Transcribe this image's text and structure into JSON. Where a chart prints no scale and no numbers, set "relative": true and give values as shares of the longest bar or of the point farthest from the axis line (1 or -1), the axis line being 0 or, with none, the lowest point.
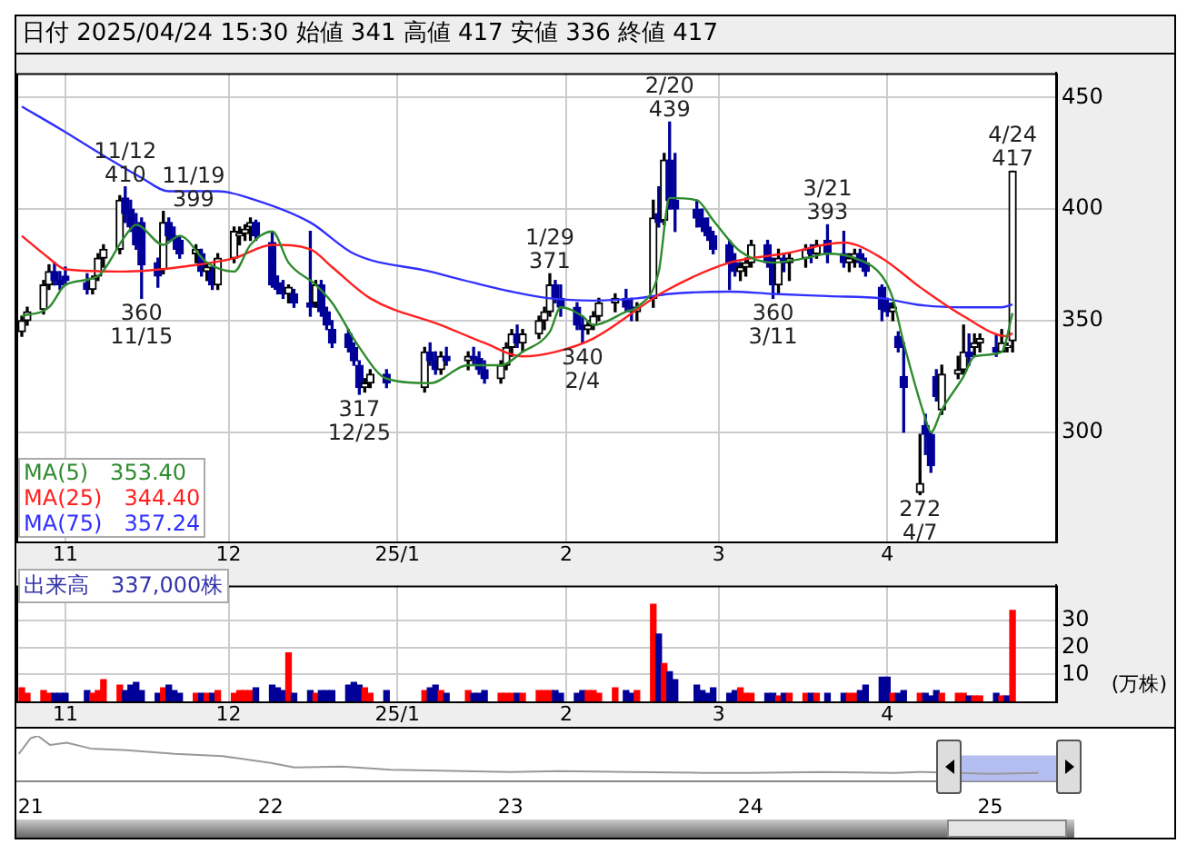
{
  "chart_data": [
    {
      "type": "candlestick",
      "title": "日付 2025/04/24 15:30 始値 341 高値 417 安値 336 終値 417",
      "x": [
        "2024-10-24",
        "2024-10-25",
        "2024-10-28",
        "2024-10-29",
        "2024-10-30",
        "2024-10-31",
        "2024-11-01",
        "2024-11-05",
        "2024-11-06",
        "2024-11-07",
        "2024-11-08",
        "2024-11-11",
        "2024-11-12",
        "2024-11-13",
        "2024-11-14",
        "2024-11-15",
        "2024-11-18",
        "2024-11-19",
        "2024-11-20",
        "2024-11-21",
        "2024-11-22",
        "2024-11-25",
        "2024-11-26",
        "2024-11-27",
        "2024-11-28",
        "2024-11-29",
        "2024-12-02",
        "2024-12-03",
        "2024-12-04",
        "2024-12-05",
        "2024-12-06",
        "2024-12-09",
        "2024-12-10",
        "2024-12-11",
        "2024-12-12",
        "2024-12-13",
        "2024-12-16",
        "2024-12-17",
        "2024-12-18",
        "2024-12-19",
        "2024-12-20",
        "2024-12-23",
        "2024-12-24",
        "2024-12-25",
        "2024-12-26",
        "2024-12-27",
        "2024-12-30",
        "2025-01-06",
        "2025-01-07",
        "2025-01-08",
        "2025-01-09",
        "2025-01-10",
        "2025-01-14",
        "2025-01-15",
        "2025-01-16",
        "2025-01-17",
        "2025-01-20",
        "2025-01-21",
        "2025-01-22",
        "2025-01-23",
        "2025-01-24",
        "2025-01-27",
        "2025-01-28",
        "2025-01-29",
        "2025-01-30",
        "2025-01-31",
        "2025-02-03",
        "2025-02-04",
        "2025-02-05",
        "2025-02-06",
        "2025-02-07",
        "2025-02-10",
        "2025-02-12",
        "2025-02-13",
        "2025-02-14",
        "2025-02-17",
        "2025-02-18",
        "2025-02-19",
        "2025-02-20",
        "2025-02-21",
        "2025-02-25",
        "2025-02-26",
        "2025-02-27",
        "2025-02-28",
        "2025-03-03",
        "2025-03-04",
        "2025-03-05",
        "2025-03-06",
        "2025-03-07",
        "2025-03-10",
        "2025-03-11",
        "2025-03-12",
        "2025-03-13",
        "2025-03-14",
        "2025-03-17",
        "2025-03-18",
        "2025-03-19",
        "2025-03-21",
        "2025-03-24",
        "2025-03-25",
        "2025-03-26",
        "2025-03-27",
        "2025-03-28",
        "2025-03-31",
        "2025-04-01",
        "2025-04-02",
        "2025-04-03",
        "2025-04-04",
        "2025-04-07",
        "2025-04-08",
        "2025-04-09",
        "2025-04-10",
        "2025-04-11",
        "2025-04-14",
        "2025-04-15",
        "2025-04-16",
        "2025-04-17",
        "2025-04-18",
        "2025-04-21",
        "2025-04-22",
        "2025-04-23",
        "2025-04-24"
      ],
      "ohlc": [
        [
          345,
          352,
          343,
          350
        ],
        [
          350,
          356,
          348,
          354
        ],
        [
          355,
          368,
          353,
          366
        ],
        [
          366,
          375,
          364,
          372
        ],
        [
          372,
          376,
          366,
          368
        ],
        [
          368,
          372,
          364,
          366
        ],
        [
          370,
          374,
          366,
          368
        ],
        [
          367,
          371,
          362,
          364
        ],
        [
          364,
          370,
          362,
          369
        ],
        [
          370,
          380,
          368,
          378
        ],
        [
          378,
          384,
          374,
          382
        ],
        [
          382,
          406,
          380,
          404
        ],
        [
          405,
          410,
          394,
          398
        ],
        [
          400,
          404,
          390,
          392
        ],
        [
          392,
          398,
          382,
          384
        ],
        [
          394,
          396,
          360,
          375
        ],
        [
          376,
          378,
          365,
          370
        ],
        [
          373,
          399,
          371,
          394
        ],
        [
          394,
          396,
          386,
          388
        ],
        [
          388,
          392,
          382,
          386
        ],
        [
          386,
          388,
          378,
          380
        ],
        [
          380,
          384,
          376,
          382
        ],
        [
          380,
          382,
          370,
          372
        ],
        [
          372,
          376,
          368,
          374
        ],
        [
          372,
          374,
          364,
          366
        ],
        [
          366,
          380,
          364,
          378
        ],
        [
          378,
          392,
          376,
          390
        ],
        [
          388,
          392,
          384,
          389
        ],
        [
          389,
          393,
          386,
          391
        ],
        [
          392,
          396,
          386,
          394
        ],
        [
          394,
          395,
          386,
          388
        ],
        [
          385,
          390,
          365,
          366
        ],
        [
          367,
          370,
          362,
          364
        ],
        [
          364,
          368,
          360,
          362
        ],
        [
          362,
          366,
          358,
          365
        ],
        [
          362,
          364,
          356,
          358
        ],
        [
          358,
          390,
          352,
          356
        ],
        [
          358,
          368,
          356,
          366
        ],
        [
          366,
          368,
          352,
          354
        ],
        [
          354,
          356,
          346,
          348
        ],
        [
          346,
          350,
          338,
          340
        ],
        [
          344,
          346,
          336,
          338
        ],
        [
          338,
          340,
          330,
          332
        ],
        [
          330,
          332,
          317,
          320
        ],
        [
          320,
          324,
          318,
          322
        ],
        [
          322,
          328,
          320,
          326
        ],
        [
          326,
          328,
          320,
          322
        ],
        [
          320,
          338,
          318,
          336
        ],
        [
          336,
          340,
          330,
          332
        ],
        [
          332,
          336,
          326,
          328
        ],
        [
          328,
          336,
          326,
          334
        ],
        [
          334,
          338,
          330,
          332
        ],
        [
          332,
          336,
          328,
          334
        ],
        [
          334,
          338,
          330,
          333
        ],
        [
          333,
          336,
          326,
          328
        ],
        [
          328,
          332,
          322,
          324
        ],
        [
          324,
          332,
          322,
          330
        ],
        [
          330,
          340,
          328,
          338
        ],
        [
          338,
          346,
          334,
          344
        ],
        [
          344,
          348,
          338,
          340
        ],
        [
          340,
          346,
          336,
          344
        ],
        [
          344,
          352,
          342,
          350
        ],
        [
          350,
          356,
          346,
          354
        ],
        [
          354,
          371,
          352,
          366
        ],
        [
          366,
          368,
          358,
          360
        ],
        [
          360,
          366,
          352,
          356
        ],
        [
          356,
          358,
          346,
          348
        ],
        [
          348,
          352,
          340,
          346
        ],
        [
          346,
          350,
          344,
          348
        ],
        [
          348,
          354,
          346,
          352
        ],
        [
          352,
          360,
          350,
          358
        ],
        [
          358,
          362,
          354,
          360
        ],
        [
          360,
          364,
          354,
          356
        ],
        [
          356,
          360,
          350,
          354
        ],
        [
          354,
          358,
          350,
          356
        ],
        [
          360,
          404,
          356,
          396
        ],
        [
          398,
          410,
          392,
          394
        ],
        [
          395,
          425,
          393,
          422
        ],
        [
          422,
          439,
          400,
          404
        ],
        [
          404,
          425,
          390,
          400
        ],
        [
          400,
          404,
          392,
          396
        ],
        [
          396,
          400,
          390,
          392
        ],
        [
          392,
          396,
          386,
          388
        ],
        [
          388,
          390,
          380,
          382
        ],
        [
          384,
          386,
          364,
          376
        ],
        [
          376,
          380,
          370,
          372
        ],
        [
          372,
          376,
          368,
          374
        ],
        [
          374,
          378,
          370,
          376
        ],
        [
          376,
          386,
          374,
          384
        ],
        [
          384,
          386,
          374,
          376
        ],
        [
          376,
          378,
          360,
          366
        ],
        [
          366,
          382,
          362,
          378
        ],
        [
          378,
          380,
          372,
          376
        ],
        [
          376,
          380,
          368,
          378
        ],
        [
          378,
          384,
          374,
          382
        ],
        [
          382,
          384,
          376,
          380
        ],
        [
          380,
          386,
          378,
          384
        ],
        [
          386,
          393,
          376,
          380
        ],
        [
          380,
          390,
          374,
          376
        ],
        [
          376,
          380,
          372,
          378
        ],
        [
          378,
          382,
          374,
          380
        ],
        [
          380,
          382,
          374,
          376
        ],
        [
          376,
          378,
          370,
          372
        ],
        [
          365,
          366,
          350,
          355
        ],
        [
          358,
          360,
          352,
          354
        ],
        [
          354,
          358,
          350,
          356
        ],
        [
          343,
          345,
          336,
          338
        ],
        [
          325,
          340,
          300,
          320
        ],
        [
          273,
          299,
          272,
          277
        ],
        [
          303,
          308,
          290,
          299
        ],
        [
          299,
          300,
          282,
          285
        ],
        [
          325,
          328,
          314,
          316
        ],
        [
          310,
          330,
          308,
          326
        ],
        [
          326,
          334,
          324,
          328
        ],
        [
          328,
          348,
          326,
          336
        ],
        [
          336,
          344,
          330,
          334
        ],
        [
          338,
          344,
          334,
          340
        ],
        [
          340,
          344,
          336,
          342
        ],
        [
          338,
          344,
          334,
          336
        ],
        [
          336,
          346,
          336,
          340
        ],
        [
          338,
          340,
          336,
          338
        ],
        [
          341,
          417,
          336,
          417
        ]
      ],
      "series": [
        {
          "name": "MA(5)　353.40",
          "type": "line",
          "color": "#2e8b2e",
          "x": [
            "2024-10-24",
            "2024-10-29",
            "2024-11-01",
            "2024-11-07",
            "2024-11-12",
            "2024-11-14",
            "2024-11-19",
            "2024-11-22",
            "2024-11-27",
            "2024-12-02",
            "2024-12-05",
            "2024-12-09",
            "2024-12-12",
            "2024-12-17",
            "2024-12-20",
            "2024-12-25",
            "2024-12-30",
            "2025-01-07",
            "2025-01-14",
            "2025-01-20",
            "2025-01-24",
            "2025-01-29",
            "2025-01-31",
            "2025-02-04",
            "2025-02-06",
            "2025-02-12",
            "2025-02-14",
            "2025-02-18",
            "2025-02-20",
            "2025-02-25",
            "2025-02-28",
            "2025-03-05",
            "2025-03-11",
            "2025-03-17",
            "2025-03-21",
            "2025-03-26",
            "2025-03-31",
            "2025-04-02",
            "2025-04-04",
            "2025-04-08",
            "2025-04-09",
            "2025-04-11",
            "2025-04-15",
            "2025-04-17",
            "2025-04-22",
            "2025-04-24"
          ],
          "values": [
            352,
            356,
            366,
            370,
            388,
            393,
            384,
            388,
            376,
            372,
            384,
            390,
            376,
            366,
            358,
            338,
            324,
            322,
            330,
            330,
            336,
            345,
            356,
            352,
            348,
            354,
            356,
            372,
            405,
            404,
            395,
            381,
            376,
            378,
            380,
            378,
            370,
            360,
            340,
            306,
            300,
            310,
            325,
            334,
            336,
            353.4
          ]
        },
        {
          "name": "MA(25)　344.40",
          "type": "line",
          "color": "#ff2020",
          "x": [
            "2024-10-24",
            "2024-10-29",
            "2024-11-01",
            "2024-11-12",
            "2024-11-22",
            "2024-12-02",
            "2024-12-09",
            "2024-12-16",
            "2024-12-20",
            "2024-12-27",
            "2025-01-09",
            "2025-01-17",
            "2025-01-24",
            "2025-01-30",
            "2025-02-06",
            "2025-02-19",
            "2025-03-03",
            "2025-03-13",
            "2025-03-24",
            "2025-03-31",
            "2025-04-07",
            "2025-04-15",
            "2025-04-23",
            "2025-04-24"
          ],
          "values": [
            388,
            378,
            373,
            372,
            374,
            378,
            384,
            382,
            374,
            360,
            348,
            340,
            334,
            336,
            342,
            363,
            376,
            380,
            385,
            378,
            365,
            352,
            343,
            344.4
          ]
        },
        {
          "name": "MA(75)　357.24",
          "type": "line",
          "color": "#3030ff",
          "x": [
            "2024-10-24",
            "2024-10-31",
            "2024-11-08",
            "2024-11-15",
            "2024-11-20",
            "2024-11-29",
            "2024-12-06",
            "2024-12-16",
            "2024-12-24",
            "2025-01-07",
            "2025-01-15",
            "2025-01-22",
            "2025-01-29",
            "2025-02-06",
            "2025-02-14",
            "2025-02-20",
            "2025-03-03",
            "2025-03-11",
            "2025-03-21",
            "2025-03-31",
            "2025-04-07",
            "2025-04-15",
            "2025-04-22",
            "2025-04-24"
          ],
          "values": [
            446,
            436,
            424,
            414,
            408,
            408,
            404,
            394,
            380,
            372,
            367,
            363,
            360,
            359,
            360,
            362,
            363,
            362,
            361,
            360,
            357,
            356,
            356,
            357.24
          ]
        }
      ],
      "ylim": [
        251,
        461
      ],
      "yticks": [
        300,
        350,
        400,
        450
      ],
      "xlim": [
        "2024-10-23",
        "2025-05-02"
      ],
      "xticks": [
        {
          "value": "2024-11-01",
          "label": "11"
        },
        {
          "value": "2024-12-01",
          "label": "12"
        },
        {
          "value": "2025-01-01",
          "label": "25/1"
        },
        {
          "value": "2025-02-01",
          "label": "2"
        },
        {
          "value": "2025-03-01",
          "label": "3"
        },
        {
          "value": "2025-04-01",
          "label": "4"
        }
      ],
      "grid": true,
      "legend": "bottom left",
      "annotations": [
        {
          "text": "11/12\n410",
          "x": "2024-11-12",
          "y": 410
        },
        {
          "text": "360\n11/15",
          "x": "2024-11-15",
          "y": 360
        },
        {
          "text": "11/19\n399",
          "x": "2024-11-19",
          "y": 399
        },
        {
          "text": "317\n12/25",
          "x": "2024-12-25",
          "y": 317
        },
        {
          "text": "1/29\n371",
          "x": "2025-01-29",
          "y": 371
        },
        {
          "text": "340\n2/4",
          "x": "2025-02-04",
          "y": 340
        },
        {
          "text": "2/20\n439",
          "x": "2025-02-20",
          "y": 439
        },
        {
          "text": "360\n3/11",
          "x": "2025-03-11",
          "y": 360
        },
        {
          "text": "3/21\n393",
          "x": "2025-03-21",
          "y": 393
        },
        {
          "text": "272\n4/7",
          "x": "2025-04-07",
          "y": 272
        },
        {
          "text": "4/24\n417",
          "x": "2025-04-24",
          "y": 417
        }
      ]
    },
    {
      "type": "bar",
      "title": "出来高　337,000株",
      "ylabel": "(万株)",
      "x": [
        "2024-10-24",
        "2024-10-25",
        "2024-10-28",
        "2024-10-29",
        "2024-10-30",
        "2024-10-31",
        "2024-11-01",
        "2024-11-05",
        "2024-11-06",
        "2024-11-07",
        "2024-11-08",
        "2024-11-11",
        "2024-11-12",
        "2024-11-13",
        "2024-11-14",
        "2024-11-15",
        "2024-11-18",
        "2024-11-19",
        "2024-11-20",
        "2024-11-21",
        "2024-11-22",
        "2024-11-25",
        "2024-11-26",
        "2024-11-27",
        "2024-11-28",
        "2024-11-29",
        "2024-12-02",
        "2024-12-03",
        "2024-12-04",
        "2024-12-05",
        "2024-12-06",
        "2024-12-09",
        "2024-12-10",
        "2024-12-11",
        "2024-12-12",
        "2024-12-13",
        "2024-12-16",
        "2024-12-17",
        "2024-12-18",
        "2024-12-19",
        "2024-12-20",
        "2024-12-23",
        "2024-12-24",
        "2024-12-25",
        "2024-12-26",
        "2024-12-27",
        "2024-12-30",
        "2025-01-06",
        "2025-01-07",
        "2025-01-08",
        "2025-01-09",
        "2025-01-10",
        "2025-01-14",
        "2025-01-15",
        "2025-01-16",
        "2025-01-17",
        "2025-01-20",
        "2025-01-21",
        "2025-01-22",
        "2025-01-23",
        "2025-01-24",
        "2025-01-27",
        "2025-01-28",
        "2025-01-29",
        "2025-01-30",
        "2025-01-31",
        "2025-02-03",
        "2025-02-04",
        "2025-02-05",
        "2025-02-06",
        "2025-02-07",
        "2025-02-10",
        "2025-02-12",
        "2025-02-13",
        "2025-02-14",
        "2025-02-17",
        "2025-02-18",
        "2025-02-19",
        "2025-02-20",
        "2025-02-21",
        "2025-02-25",
        "2025-02-26",
        "2025-02-27",
        "2025-02-28",
        "2025-03-03",
        "2025-03-04",
        "2025-03-05",
        "2025-03-06",
        "2025-03-07",
        "2025-03-10",
        "2025-03-11",
        "2025-03-12",
        "2025-03-13",
        "2025-03-14",
        "2025-03-17",
        "2025-03-18",
        "2025-03-19",
        "2025-03-21",
        "2025-03-24",
        "2025-03-25",
        "2025-03-26",
        "2025-03-27",
        "2025-03-28",
        "2025-03-31",
        "2025-04-01",
        "2025-04-02",
        "2025-04-03",
        "2025-04-04",
        "2025-04-07",
        "2025-04-08",
        "2025-04-09",
        "2025-04-10",
        "2025-04-11",
        "2025-04-14",
        "2025-04-15",
        "2025-04-16",
        "2025-04-17",
        "2025-04-18",
        "2025-04-21",
        "2025-04-22",
        "2025-04-23",
        "2025-04-24"
      ],
      "values": [
        5,
        3,
        4,
        3,
        3,
        3,
        3,
        4,
        3,
        4,
        8,
        6,
        4,
        6,
        7,
        4,
        3,
        5,
        6,
        4,
        3,
        3,
        3,
        3,
        3,
        4,
        3,
        4,
        4,
        4,
        5,
        6,
        5,
        4,
        18,
        3,
        4,
        3,
        4,
        4,
        4,
        6,
        7,
        6,
        5,
        3,
        4,
        4,
        5,
        6,
        4,
        3,
        4,
        3,
        3,
        4,
        3,
        3,
        3,
        3,
        3,
        4,
        4,
        4,
        4,
        3,
        3,
        4,
        4,
        4,
        3,
        5,
        4,
        3,
        4,
        36,
        25,
        14,
        11,
        8,
        6,
        4,
        3,
        5,
        3,
        4,
        5,
        3,
        3,
        3,
        3,
        2,
        3,
        3,
        3,
        3,
        3,
        3,
        3,
        3,
        3,
        4,
        6,
        9,
        9,
        3,
        3,
        4,
        3,
        3,
        2,
        4,
        3,
        3,
        3,
        2,
        2,
        2,
        3,
        2,
        2,
        33.7
      ],
      "colors": [
        "#ff0000",
        "#ff0000",
        "#ff0000",
        "#ff0000",
        "#000099",
        "#000099",
        "#000099",
        "#000099",
        "#ff0000",
        "#ff0000",
        "#ff0000",
        "#ff0000",
        "#000099",
        "#000099",
        "#000099",
        "#000099",
        "#000099",
        "#ff0000",
        "#000099",
        "#000099",
        "#000099",
        "#ff0000",
        "#000099",
        "#ff0000",
        "#000099",
        "#ff0000",
        "#ff0000",
        "#ff0000",
        "#ff0000",
        "#ff0000",
        "#000099",
        "#000099",
        "#000099",
        "#000099",
        "#ff0000",
        "#000099",
        "#000099",
        "#ff0000",
        "#000099",
        "#000099",
        "#000099",
        "#000099",
        "#000099",
        "#000099",
        "#ff0000",
        "#ff0000",
        "#000099",
        "#ff0000",
        "#000099",
        "#000099",
        "#ff0000",
        "#000099",
        "#ff0000",
        "#000099",
        "#000099",
        "#000099",
        "#ff0000",
        "#ff0000",
        "#ff0000",
        "#000099",
        "#ff0000",
        "#ff0000",
        "#ff0000",
        "#ff0000",
        "#000099",
        "#000099",
        "#000099",
        "#000099",
        "#ff0000",
        "#ff0000",
        "#ff0000",
        "#ff0000",
        "#000099",
        "#000099",
        "#ff0000",
        "#ff0000",
        "#000099",
        "#ff0000",
        "#000099",
        "#000099",
        "#000099",
        "#000099",
        "#000099",
        "#000099",
        "#000099",
        "#000099",
        "#ff0000",
        "#ff0000",
        "#ff0000",
        "#000099",
        "#000099",
        "#ff0000",
        "#000099",
        "#ff0000",
        "#ff0000",
        "#000099",
        "#ff0000",
        "#000099",
        "#000099",
        "#ff0000",
        "#ff0000",
        "#000099",
        "#000099",
        "#000099",
        "#000099",
        "#ff0000",
        "#000099",
        "#000099",
        "#ff0000",
        "#000099",
        "#000099",
        "#000099",
        "#ff0000",
        "#ff0000",
        "#ff0000",
        "#000099",
        "#ff0000",
        "#ff0000",
        "#000099",
        "#ff0000",
        "#000099",
        "#ff0000"
      ],
      "ylim": [
        0,
        43
      ],
      "yticks": [
        10,
        20,
        30
      ],
      "xlim": [
        "2024-10-23",
        "2025-05-02"
      ],
      "xticks": [
        {
          "value": "2024-11-01",
          "label": "11"
        },
        {
          "value": "2024-12-01",
          "label": "12"
        },
        {
          "value": "2025-01-01",
          "label": "25/1"
        },
        {
          "value": "2025-02-01",
          "label": "2"
        },
        {
          "value": "2025-03-01",
          "label": "3"
        },
        {
          "value": "2025-04-01",
          "label": "4"
        }
      ],
      "grid": true
    },
    {
      "type": "line",
      "relative": true,
      "x": [
        2020.95,
        2021.0,
        2021.03,
        2021.08,
        2021.15,
        2021.25,
        2021.4,
        2021.6,
        2021.8,
        2022.0,
        2022.1,
        2022.3,
        2022.5,
        2022.8,
        2023.0,
        2023.2,
        2023.5,
        2023.8,
        2024.0,
        2024.3,
        2024.6,
        2024.7,
        2025.0,
        2025.2
      ],
      "series": [
        {
          "color": "#999999",
          "values": [
            0.6,
            0.95,
            1,
            0.8,
            0.85,
            0.72,
            0.68,
            0.6,
            0.55,
            0.4,
            0.3,
            0.32,
            0.25,
            0.22,
            0.2,
            0.22,
            0.2,
            0.18,
            0.18,
            0.2,
            0.18,
            0.2,
            0.16,
            0.18
          ]
        }
      ],
      "xlim": [
        2020.94,
        2025.35
      ],
      "xticks": [
        {
          "value": 2021,
          "label": "21"
        },
        {
          "value": 2022,
          "label": "22"
        },
        {
          "value": 2023,
          "label": "23"
        },
        {
          "value": 2024,
          "label": "24"
        },
        {
          "value": 2025,
          "label": "25"
        }
      ],
      "bands": [
        {
          "axis": "x",
          "from": 2024.82,
          "to": 2025.32,
          "color": "#b4bef0"
        }
      ]
    }
  ]
}
